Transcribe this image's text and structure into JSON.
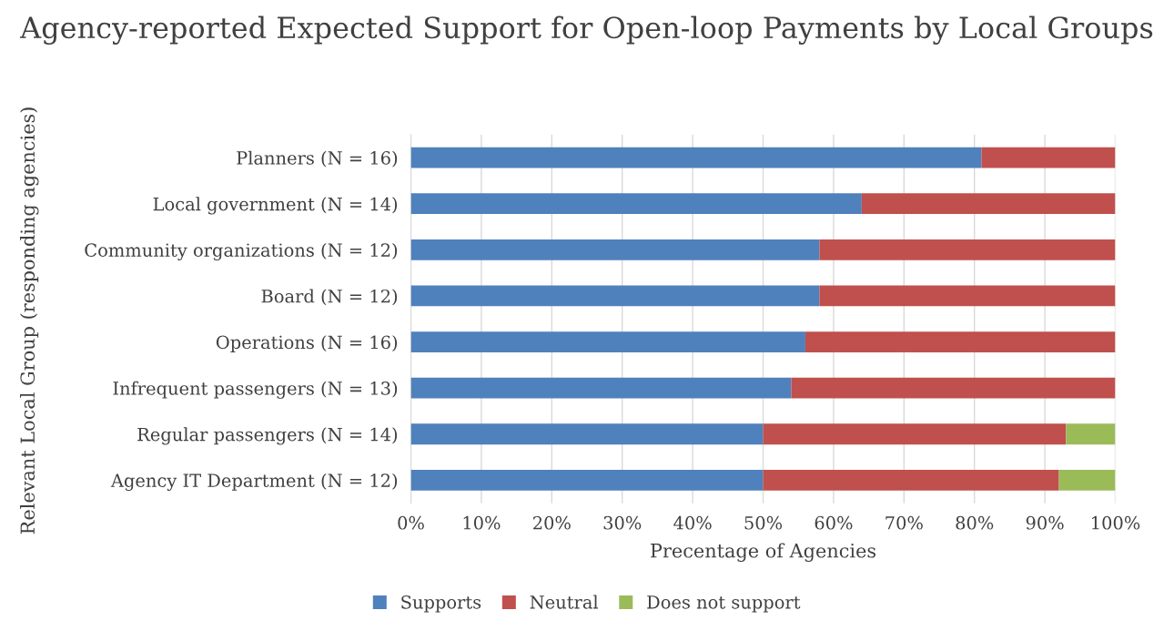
{
  "chart_data": {
    "type": "bar",
    "orientation": "horizontal",
    "stacked": true,
    "title": "Agency-reported Expected Support for Open-loop Payments by Local Groups",
    "xlabel": "Precentage of Agencies",
    "ylabel": "Relevant Local Group (responding agencies)",
    "categories": [
      "Planners (N = 16)",
      "Local government (N = 14)",
      "Community organizations (N = 12)",
      "Board (N = 12)",
      "Operations (N = 16)",
      "Infrequent passengers (N = 13)",
      "Regular passengers (N = 14)",
      "Agency IT Department (N = 12)"
    ],
    "series": [
      {
        "name": "Supports",
        "color": "#4f81bd",
        "values": [
          81,
          64,
          58,
          58,
          56,
          54,
          50,
          50
        ]
      },
      {
        "name": "Neutral",
        "color": "#c0504d",
        "values": [
          19,
          36,
          42,
          42,
          44,
          46,
          43,
          42
        ]
      },
      {
        "name": "Does not support",
        "color": "#9bbb59",
        "values": [
          0,
          0,
          0,
          0,
          0,
          0,
          7,
          8
        ]
      }
    ],
    "xlim": [
      0,
      100
    ],
    "xticks": [
      {
        "value": 0,
        "label": "0%"
      },
      {
        "value": 10,
        "label": "10%"
      },
      {
        "value": 20,
        "label": "20%"
      },
      {
        "value": 30,
        "label": "30%"
      },
      {
        "value": 40,
        "label": "40%"
      },
      {
        "value": 50,
        "label": "50%"
      },
      {
        "value": 60,
        "label": "60%"
      },
      {
        "value": 70,
        "label": "70%"
      },
      {
        "value": 80,
        "label": "80%"
      },
      {
        "value": 90,
        "label": "90%"
      },
      {
        "value": 100,
        "label": "100%"
      }
    ],
    "grid": "x",
    "legend": "bottom"
  }
}
